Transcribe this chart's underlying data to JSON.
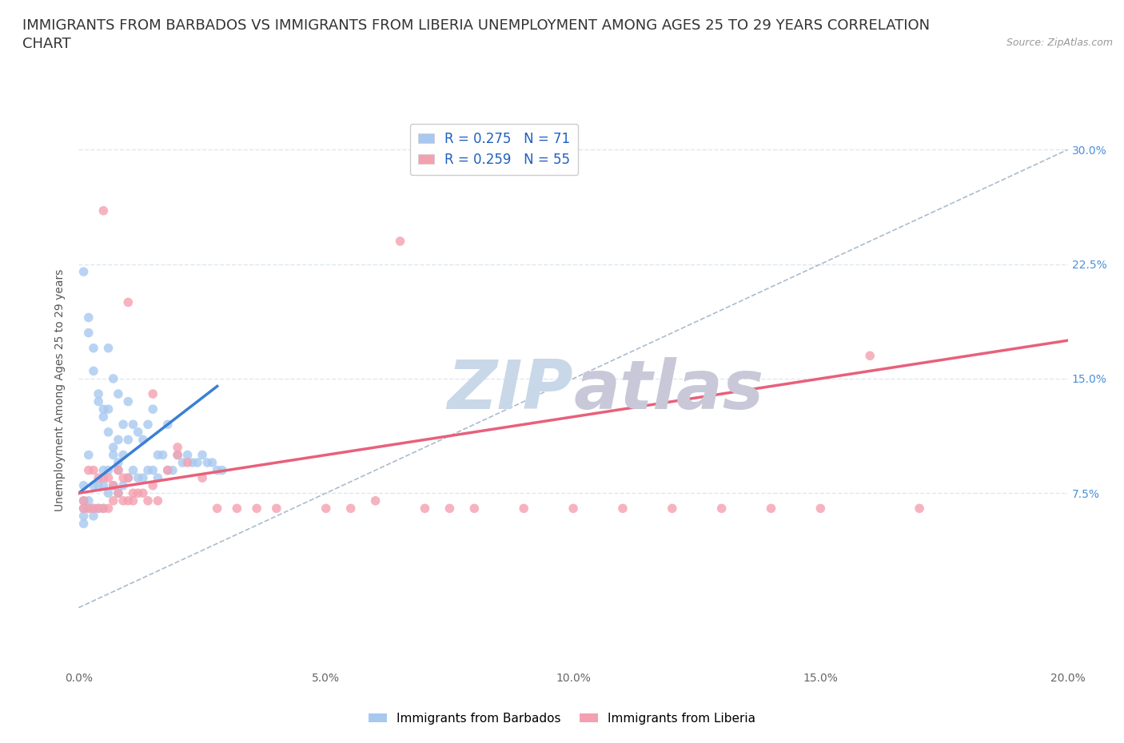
{
  "title_line1": "IMMIGRANTS FROM BARBADOS VS IMMIGRANTS FROM LIBERIA UNEMPLOYMENT AMONG AGES 25 TO 29 YEARS CORRELATION",
  "title_line2": "CHART",
  "source": "Source: ZipAtlas.com",
  "ylabel": "Unemployment Among Ages 25 to 29 years",
  "xticklabels": [
    "0.0%",
    "5.0%",
    "10.0%",
    "15.0%",
    "20.0%"
  ],
  "yticklabels": [
    "7.5%",
    "15.0%",
    "22.5%",
    "30.0%"
  ],
  "xlim": [
    0.0,
    0.2
  ],
  "ylim": [
    -0.04,
    0.325
  ],
  "barbados_R": 0.275,
  "barbados_N": 71,
  "liberia_R": 0.259,
  "liberia_N": 55,
  "barbados_color": "#a8c8f0",
  "liberia_color": "#f4a0b0",
  "barbados_line_color": "#3a7fd5",
  "liberia_line_color": "#e8607a",
  "ref_line_color": "#aabcce",
  "watermark_zip": "ZIP",
  "watermark_atlas": "atlas",
  "watermark_color_zip": "#c8d8e8",
  "watermark_color_atlas": "#c8c8d8",
  "legend_label_barbados": "Immigrants from Barbados",
  "legend_label_liberia": "Immigrants from Liberia",
  "background_color": "#ffffff",
  "grid_color": "#dde8f0",
  "title_fontsize": 13,
  "axis_label_fontsize": 10,
  "tick_fontsize": 10,
  "legend_fontsize": 11,
  "barbados_scatter_x": [
    0.001,
    0.001,
    0.001,
    0.001,
    0.001,
    0.002,
    0.002,
    0.002,
    0.002,
    0.003,
    0.003,
    0.003,
    0.003,
    0.004,
    0.004,
    0.004,
    0.005,
    0.005,
    0.005,
    0.005,
    0.006,
    0.006,
    0.006,
    0.006,
    0.007,
    0.007,
    0.007,
    0.008,
    0.008,
    0.008,
    0.008,
    0.009,
    0.009,
    0.009,
    0.01,
    0.01,
    0.01,
    0.011,
    0.011,
    0.012,
    0.012,
    0.013,
    0.013,
    0.014,
    0.014,
    0.015,
    0.015,
    0.016,
    0.016,
    0.017,
    0.018,
    0.018,
    0.019,
    0.02,
    0.021,
    0.022,
    0.023,
    0.024,
    0.025,
    0.026,
    0.027,
    0.028,
    0.029,
    0.001,
    0.002,
    0.003,
    0.004,
    0.005,
    0.006,
    0.007,
    0.008
  ],
  "barbados_scatter_y": [
    0.08,
    0.07,
    0.065,
    0.06,
    0.055,
    0.1,
    0.18,
    0.07,
    0.065,
    0.17,
    0.08,
    0.065,
    0.06,
    0.14,
    0.08,
    0.065,
    0.13,
    0.09,
    0.08,
    0.065,
    0.17,
    0.13,
    0.09,
    0.075,
    0.15,
    0.1,
    0.08,
    0.14,
    0.11,
    0.09,
    0.075,
    0.12,
    0.1,
    0.08,
    0.135,
    0.11,
    0.085,
    0.12,
    0.09,
    0.115,
    0.085,
    0.11,
    0.085,
    0.12,
    0.09,
    0.13,
    0.09,
    0.1,
    0.085,
    0.1,
    0.12,
    0.09,
    0.09,
    0.1,
    0.095,
    0.1,
    0.095,
    0.095,
    0.1,
    0.095,
    0.095,
    0.09,
    0.09,
    0.22,
    0.19,
    0.155,
    0.135,
    0.125,
    0.115,
    0.105,
    0.095
  ],
  "liberia_scatter_x": [
    0.001,
    0.001,
    0.002,
    0.002,
    0.003,
    0.003,
    0.004,
    0.004,
    0.005,
    0.005,
    0.006,
    0.006,
    0.007,
    0.007,
    0.008,
    0.008,
    0.009,
    0.009,
    0.01,
    0.01,
    0.011,
    0.011,
    0.012,
    0.013,
    0.014,
    0.015,
    0.016,
    0.018,
    0.02,
    0.022,
    0.025,
    0.028,
    0.032,
    0.036,
    0.04,
    0.05,
    0.055,
    0.06,
    0.065,
    0.07,
    0.075,
    0.08,
    0.09,
    0.1,
    0.11,
    0.12,
    0.13,
    0.14,
    0.15,
    0.16,
    0.17,
    0.005,
    0.01,
    0.015,
    0.02
  ],
  "liberia_scatter_y": [
    0.07,
    0.065,
    0.09,
    0.065,
    0.09,
    0.065,
    0.085,
    0.065,
    0.085,
    0.065,
    0.085,
    0.065,
    0.08,
    0.07,
    0.09,
    0.075,
    0.085,
    0.07,
    0.085,
    0.07,
    0.075,
    0.07,
    0.075,
    0.075,
    0.07,
    0.08,
    0.07,
    0.09,
    0.1,
    0.095,
    0.085,
    0.065,
    0.065,
    0.065,
    0.065,
    0.065,
    0.065,
    0.07,
    0.24,
    0.065,
    0.065,
    0.065,
    0.065,
    0.065,
    0.065,
    0.065,
    0.065,
    0.065,
    0.065,
    0.165,
    0.065,
    0.26,
    0.2,
    0.14,
    0.105
  ],
  "barbados_trendline_x": [
    0.0,
    0.028
  ],
  "barbados_trendline_y": [
    0.075,
    0.145
  ],
  "liberia_trendline_x": [
    0.0,
    0.2
  ],
  "liberia_trendline_y": [
    0.075,
    0.175
  ],
  "ref_line_x": [
    0.0,
    0.2
  ],
  "ref_line_y": [
    0.0,
    0.3
  ]
}
